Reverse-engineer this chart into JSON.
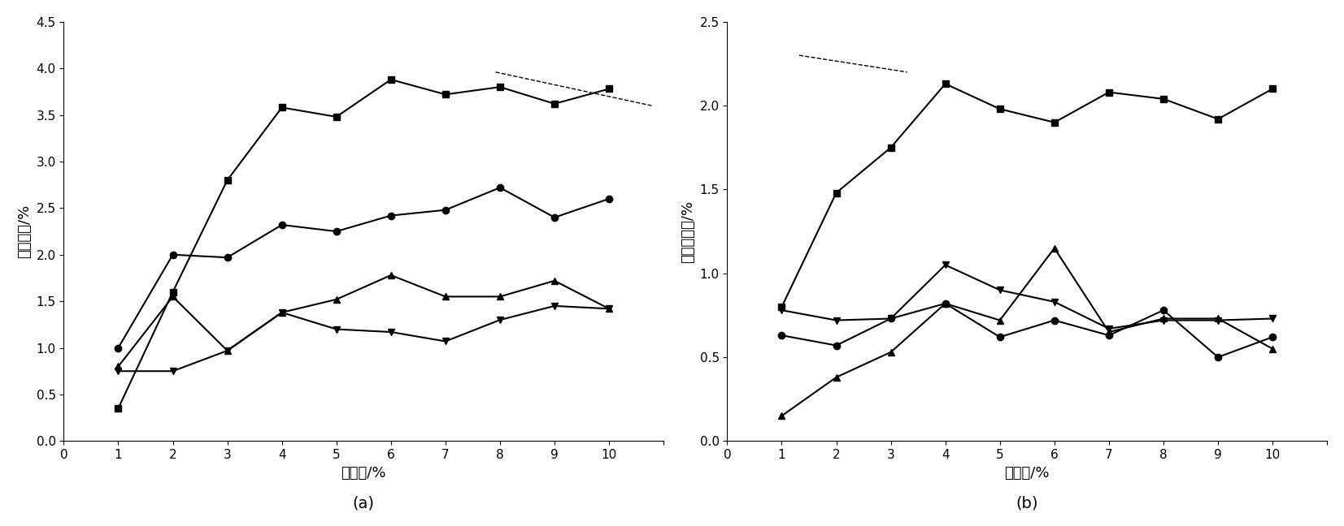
{
  "x": [
    1,
    2,
    3,
    4,
    5,
    6,
    7,
    8,
    9,
    10
  ],
  "ax1": {
    "series": [
      {
        "values": [
          0.35,
          1.6,
          2.8,
          3.58,
          3.48,
          3.88,
          3.72,
          3.8,
          3.62,
          3.78
        ],
        "marker": "s"
      },
      {
        "values": [
          1.0,
          2.0,
          1.97,
          2.32,
          2.25,
          2.42,
          2.48,
          2.72,
          2.4,
          2.6
        ],
        "marker": "o"
      },
      {
        "values": [
          0.75,
          0.75,
          0.97,
          1.38,
          1.2,
          1.17,
          1.07,
          1.3,
          1.45,
          1.42
        ],
        "marker": "v"
      },
      {
        "values": [
          0.8,
          1.55,
          0.97,
          1.38,
          1.52,
          1.78,
          1.55,
          1.55,
          1.72,
          1.42
        ],
        "marker": "^"
      }
    ],
    "ylabel": "酸吸收量/%",
    "xlabel": "酸浓度/%",
    "ylim": [
      0.0,
      4.5
    ],
    "yticks": [
      0.0,
      0.5,
      1.0,
      1.5,
      2.0,
      2.5,
      3.0,
      3.5,
      4.0,
      4.5
    ],
    "xlim": [
      0,
      11
    ],
    "xticks": [
      0,
      1,
      2,
      3,
      4,
      5,
      6,
      7,
      8,
      9,
      10,
      11
    ],
    "label": "(a)"
  },
  "ax2": {
    "series": [
      {
        "values": [
          0.8,
          1.48,
          1.75,
          2.13,
          1.98,
          1.9,
          2.08,
          2.04,
          1.92,
          2.1
        ],
        "marker": "s"
      },
      {
        "values": [
          0.63,
          0.57,
          0.73,
          0.82,
          0.62,
          0.72,
          0.63,
          0.78,
          0.5,
          0.62
        ],
        "marker": "o"
      },
      {
        "values": [
          0.78,
          0.72,
          0.73,
          1.05,
          0.9,
          0.83,
          0.67,
          0.72,
          0.72,
          0.73
        ],
        "marker": "v"
      },
      {
        "values": [
          0.15,
          0.38,
          0.53,
          0.82,
          0.72,
          1.15,
          0.65,
          0.73,
          0.73,
          0.55
        ],
        "marker": "^"
      }
    ],
    "ylabel": "洗后残留量/%",
    "xlabel": "酸浓度/%",
    "ylim": [
      0.0,
      2.5
    ],
    "yticks": [
      0.0,
      0.5,
      1.0,
      1.5,
      2.0,
      2.5
    ],
    "xlim": [
      0,
      11
    ],
    "xticks": [
      0,
      1,
      2,
      3,
      4,
      5,
      6,
      7,
      8,
      9,
      10,
      11
    ],
    "label": "(b)"
  },
  "line_color": "black",
  "marker_size": 6,
  "linewidth": 1.5,
  "background_color": "#ffffff",
  "dashed_line_ax1": {
    "x": [
      0.72,
      0.98
    ],
    "y": [
      0.88,
      0.8
    ]
  },
  "dashed_line_ax2": {
    "x": [
      0.12,
      0.3
    ],
    "y": [
      0.92,
      0.88
    ]
  }
}
